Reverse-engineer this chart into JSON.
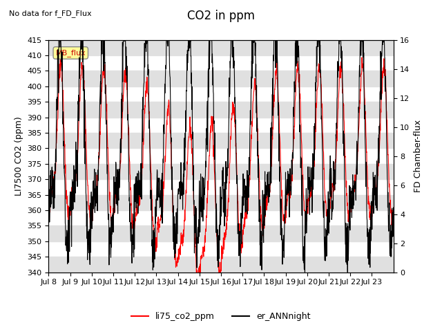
{
  "title": "CO2 in ppm",
  "no_data_text": "No data for f_FD_Flux",
  "mb_flux_label": "MB_flux",
  "ylabel_left": "LI7500 CO2 (ppm)",
  "ylabel_right": "FD Chamber-flux",
  "ylim_left": [
    340,
    415
  ],
  "ylim_right": [
    0,
    16
  ],
  "yticks_left": [
    340,
    345,
    350,
    355,
    360,
    365,
    370,
    375,
    380,
    385,
    390,
    395,
    400,
    405,
    410,
    415
  ],
  "yticks_right": [
    0,
    2,
    4,
    6,
    8,
    10,
    12,
    14,
    16
  ],
  "x_tick_labels": [
    "Jul 8",
    "Jul 9",
    "Jul 10",
    "Jul 11",
    "Jul 12",
    "Jul 13",
    "Jul 14",
    "Jul 15",
    "Jul 16",
    "Jul 17",
    "Jul 18",
    "Jul 19",
    "Jul 20",
    "Jul 21",
    "Jul 22",
    "Jul 23"
  ],
  "legend_entries": [
    "li75_co2_ppm",
    "er_ANNnight"
  ],
  "line_colors": [
    "#ff0000",
    "#000000"
  ],
  "background_color": "#ffffff",
  "band_color": "#e0e0e0",
  "title_fontsize": 12,
  "label_fontsize": 9,
  "tick_fontsize": 8
}
